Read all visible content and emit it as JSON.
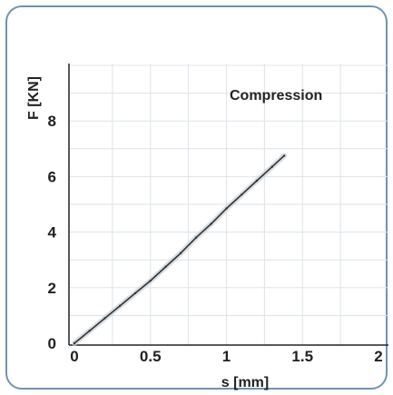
{
  "chart_data": {
    "type": "line",
    "title": "",
    "xlabel": "s [mm]",
    "ylabel": "F [KN]",
    "xlim": [
      0,
      2
    ],
    "ylim": [
      0,
      10
    ],
    "xticks": [
      0,
      0.5,
      1,
      1.5,
      2
    ],
    "xtick_labels": [
      "0",
      "0.5",
      "1",
      "1.5",
      "2"
    ],
    "yticks": [
      0,
      2,
      4,
      6,
      8
    ],
    "ytick_labels": [
      "0",
      "2",
      "4",
      "6",
      "8"
    ],
    "grid": true,
    "annotation": "Compression",
    "series": [
      {
        "x": [
          0,
          0.1,
          0.2,
          0.3,
          0.4,
          0.5,
          0.6,
          0.7,
          0.8,
          0.9,
          1.0,
          1.1,
          1.2,
          1.3,
          1.38
        ],
        "y": [
          0,
          0.45,
          0.9,
          1.35,
          1.8,
          2.25,
          2.75,
          3.25,
          3.8,
          4.3,
          4.85,
          5.35,
          5.85,
          6.35,
          6.75
        ],
        "color": "#333333"
      }
    ]
  }
}
